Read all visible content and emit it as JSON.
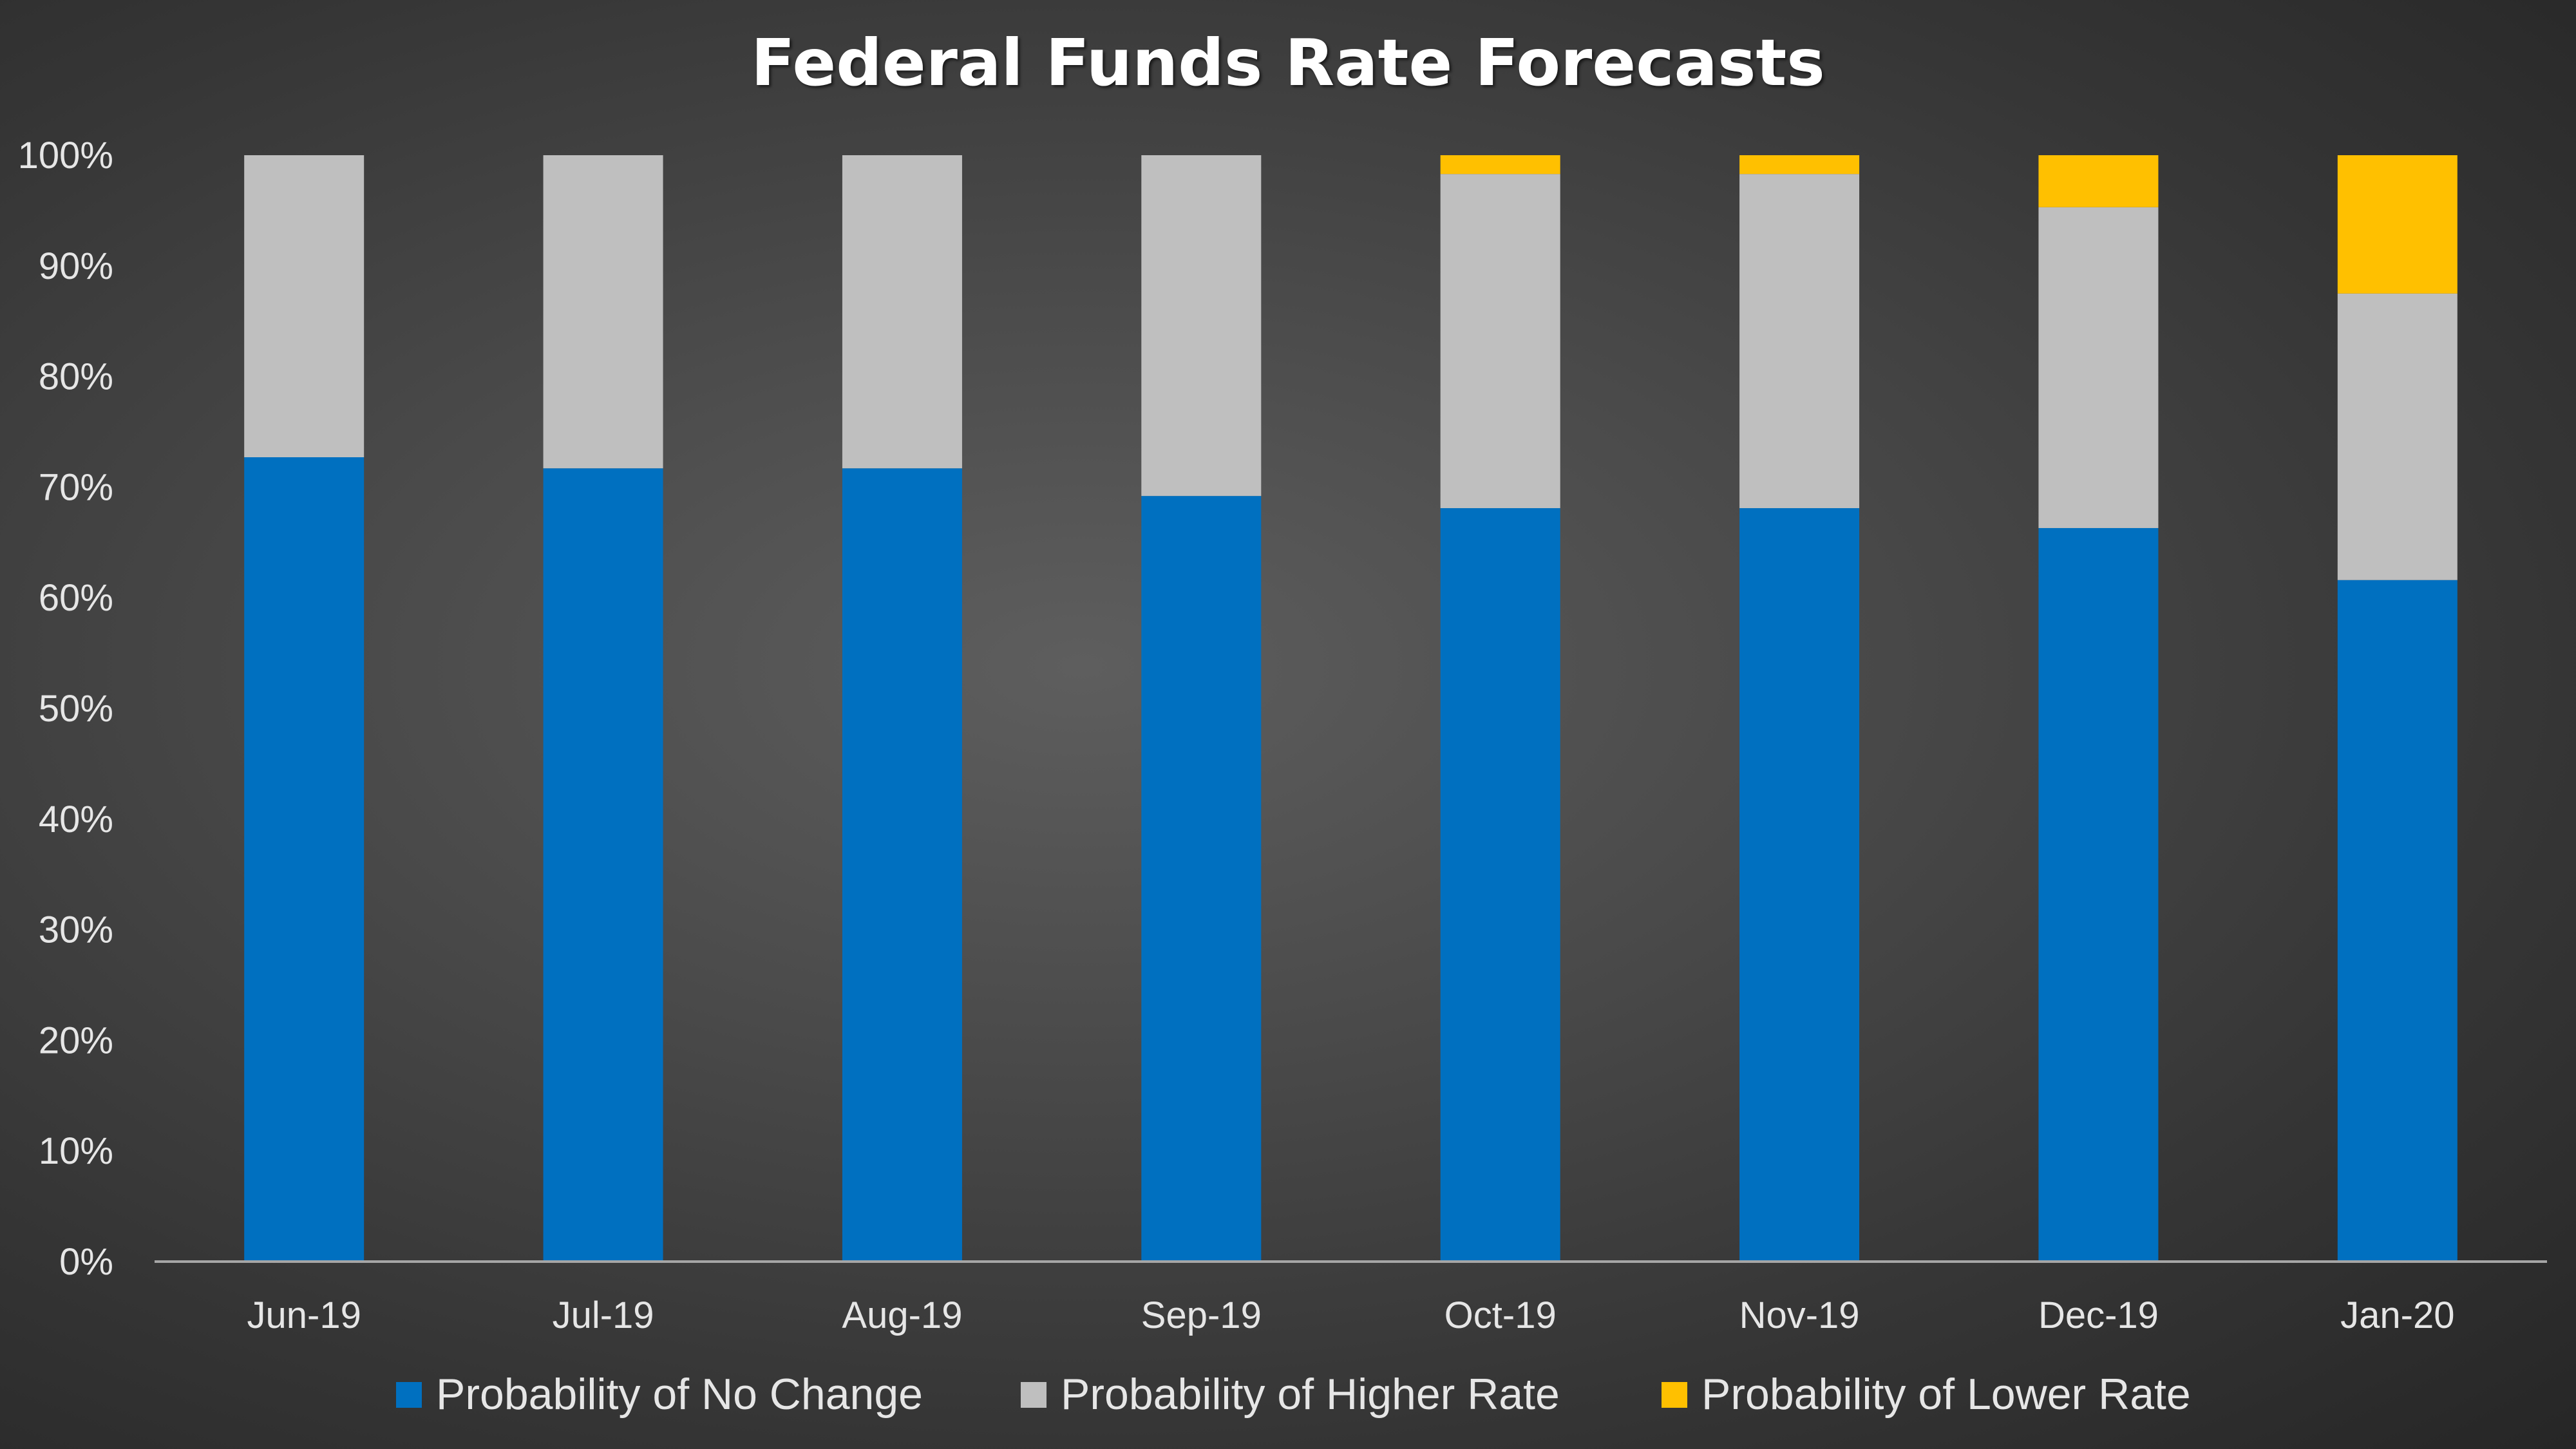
{
  "chart_data": {
    "type": "bar",
    "stacked": true,
    "title": "Federal Funds Rate Forecasts",
    "categories": [
      "Jun-19",
      "Jul-19",
      "Aug-19",
      "Sep-19",
      "Oct-19",
      "Nov-19",
      "Dec-19",
      "Jan-20"
    ],
    "series": [
      {
        "name": "Probability of No Change",
        "color": "#0070c0",
        "values": [
          72.7,
          71.7,
          71.7,
          69.2,
          68.1,
          68.1,
          66.3,
          61.6
        ]
      },
      {
        "name": "Probability of Higher Rate",
        "color": "#bfbfbf",
        "values": [
          27.3,
          28.3,
          28.3,
          30.8,
          30.2,
          30.2,
          29.0,
          25.9
        ]
      },
      {
        "name": "Probability of Lower Rate",
        "color": "#ffc000",
        "values": [
          0,
          0,
          0,
          0,
          1.7,
          1.7,
          4.7,
          12.5
        ]
      }
    ],
    "ylim": [
      0,
      100
    ],
    "yticks": [
      "0%",
      "10%",
      "20%",
      "30%",
      "40%",
      "50%",
      "60%",
      "70%",
      "80%",
      "90%",
      "100%"
    ],
    "grid": false,
    "legend_position": "bottom"
  }
}
